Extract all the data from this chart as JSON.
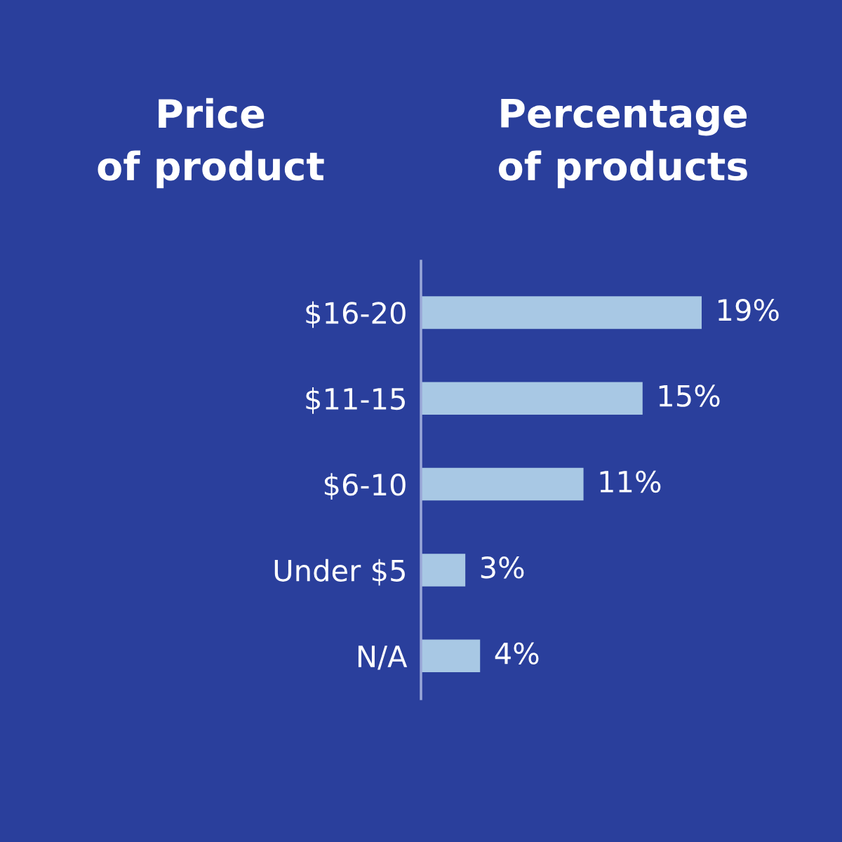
{
  "chart_data": {
    "type": "bar",
    "orientation": "horizontal",
    "ylabel": "Price\nof product",
    "xlabel": "Percentage\nof products",
    "categories": [
      "$16-20",
      "$11-15",
      "$6-10",
      "Under $5",
      "N/A"
    ],
    "values": [
      19,
      15,
      11,
      3,
      4
    ],
    "color": "#a8c8e4",
    "data_labels": true,
    "value_labels": [
      "19%",
      "15%",
      "11%",
      "3%",
      "4%"
    ],
    "grid": false,
    "legend": false
  }
}
